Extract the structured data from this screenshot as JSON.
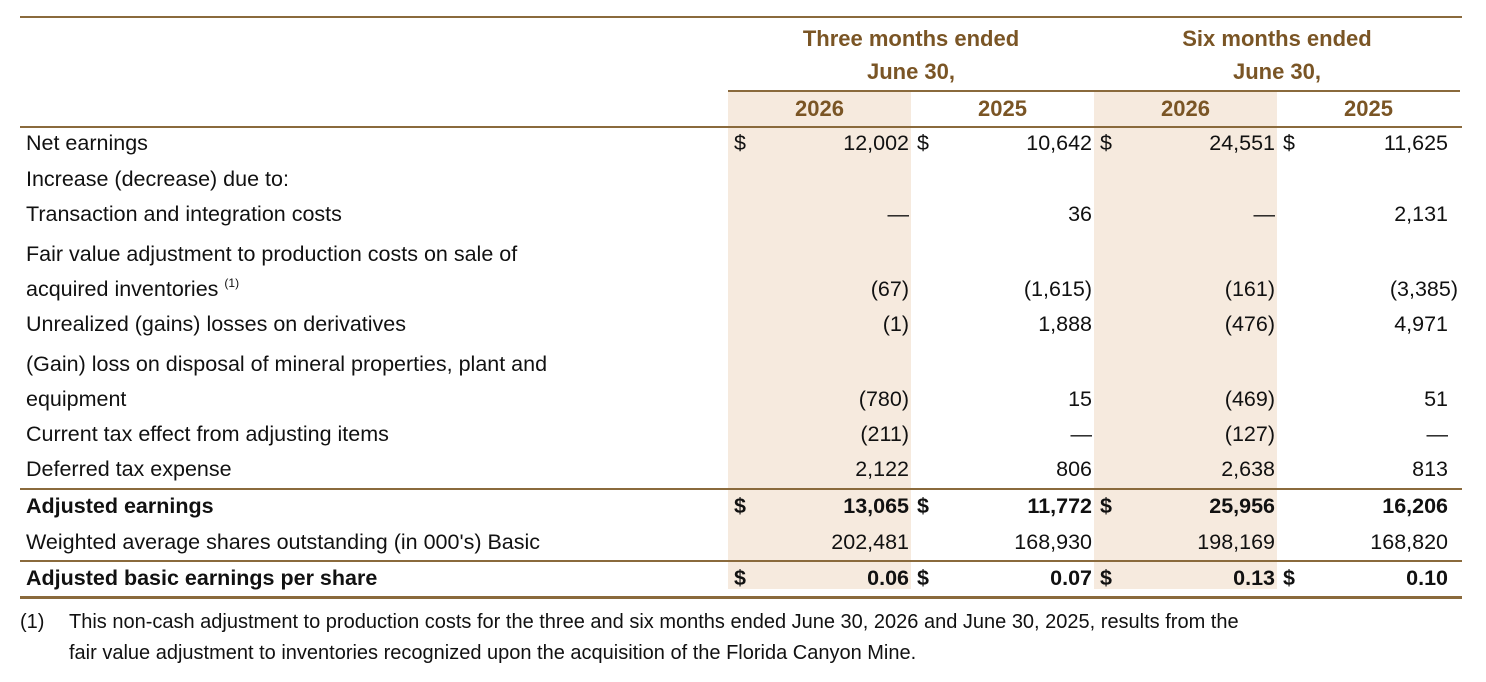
{
  "header": {
    "group1_line1": "Three months ended",
    "group1_line2": "June 30,",
    "group2_line1": "Six months ended",
    "group2_line2": "June 30,",
    "years": [
      "2026",
      "2025",
      "2026",
      "2025"
    ]
  },
  "rows": [
    {
      "label": "Net earnings",
      "cur": [
        "$",
        "$",
        "$",
        "$"
      ],
      "values": [
        "12,002",
        "10,642",
        "24,551",
        "11,625"
      ]
    },
    {
      "label": "Increase (decrease) due to:",
      "cur": [
        "",
        "",
        "",
        ""
      ],
      "values": [
        "",
        "",
        "",
        ""
      ]
    },
    {
      "label": "Transaction and integration costs",
      "cur": [
        "",
        "",
        "",
        ""
      ],
      "values": [
        "—",
        "36",
        "—",
        "2,131"
      ]
    },
    {
      "label": "Fair value adjustment to production costs on sale of",
      "label2": "acquired inventories",
      "footnote_ref": "(1)",
      "cur": [
        "",
        "",
        "",
        ""
      ],
      "values": [
        "(67)",
        "(1,615)",
        "(161)",
        "(3,385)"
      ]
    },
    {
      "label": "Unrealized (gains) losses on derivatives",
      "cur": [
        "",
        "",
        "",
        ""
      ],
      "values": [
        "(1)",
        "1,888",
        "(476)",
        "4,971"
      ]
    },
    {
      "label": "(Gain) loss on disposal of mineral properties, plant and",
      "label2": "equipment",
      "cur": [
        "",
        "",
        "",
        ""
      ],
      "values": [
        "(780)",
        "15",
        "(469)",
        "51"
      ]
    },
    {
      "label": "Current tax effect from adjusting items",
      "cur": [
        "",
        "",
        "",
        ""
      ],
      "values": [
        "(211)",
        "—",
        "(127)",
        "—"
      ]
    },
    {
      "label": "Deferred tax expense",
      "cur": [
        "",
        "",
        "",
        ""
      ],
      "values": [
        "2,122",
        "806",
        "2,638",
        "813"
      ]
    },
    {
      "label": "Adjusted earnings",
      "cur": [
        "$",
        "$",
        "$",
        ""
      ],
      "values": [
        "13,065",
        "11,772",
        "25,956",
        "16,206"
      ]
    },
    {
      "label": "Weighted average shares outstanding (in 000's) Basic",
      "cur": [
        "",
        "",
        "",
        ""
      ],
      "values": [
        "202,481",
        "168,930",
        "198,169",
        "168,820"
      ]
    },
    {
      "label": "Adjusted basic earnings per share",
      "cur": [
        "$",
        "$",
        "$",
        "$"
      ],
      "values": [
        "0.06",
        "0.07",
        "0.13",
        "0.10"
      ]
    }
  ],
  "footnote": {
    "marker": "(1)",
    "line1": "This non-cash adjustment to production costs for the three and six months ended June 30, 2026 and June 30, 2025, results from the",
    "line2": "fair value adjustment to inventories recognized upon the acquisition of the Florida Canyon Mine."
  },
  "colors": {
    "accent": "#7a5525",
    "rule": "#8a6a3c",
    "shade": "#f6eade"
  }
}
